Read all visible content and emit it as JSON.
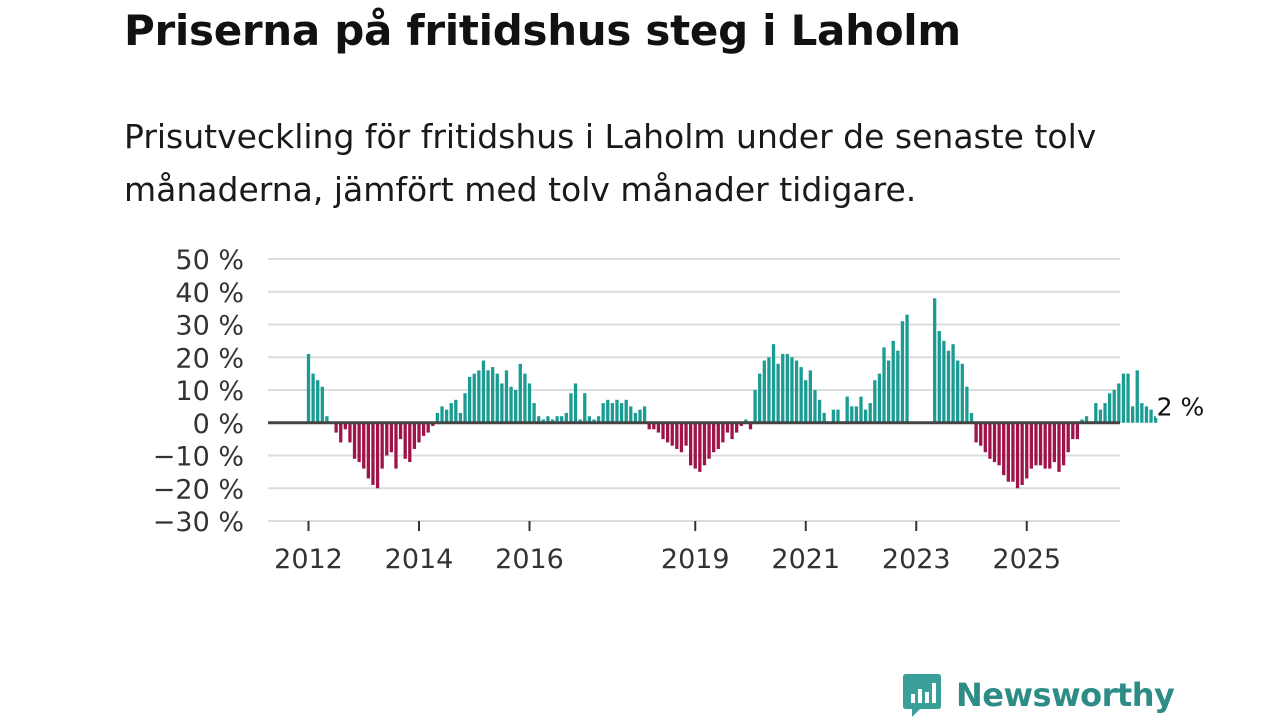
{
  "header": {
    "title": "Priserna på fritidshus steg i Laholm",
    "subtitle": "Prisutveckling för fritidshus i Laholm under de senaste tolv månaderna, jämfört med tolv månader tidigare."
  },
  "chart_data": {
    "type": "bar",
    "title": "Priserna på fritidshus steg i Laholm",
    "ylabel": "",
    "xlabel": "",
    "ylim": [
      -30,
      50
    ],
    "yticks": [
      "50 %",
      "40 %",
      "30 %",
      "20 %",
      "10 %",
      "0 %",
      "−10 %",
      "−20 %",
      "−30 %"
    ],
    "ytick_values": [
      50,
      40,
      30,
      20,
      10,
      0,
      -10,
      -20,
      -30
    ],
    "xticks": [
      {
        "label": "2012",
        "year": 2012
      },
      {
        "label": "2014",
        "year": 2014
      },
      {
        "label": "2016",
        "year": 2016
      },
      {
        "label": "2019",
        "year": 2019
      },
      {
        "label": "2021",
        "year": 2021
      },
      {
        "label": "2023",
        "year": 2023
      },
      {
        "label": "2025",
        "year": 2025
      }
    ],
    "start": {
      "year": 2012,
      "month": 1
    },
    "positive_color": "#1a9c93",
    "negative_color": "#a0134a",
    "annotation": {
      "text": "2 %",
      "value": 2
    },
    "values": [
      21,
      15,
      13,
      11,
      2,
      null,
      -3,
      -6,
      -2,
      -6,
      -11,
      -12,
      -14,
      -17,
      -19,
      -20,
      -14,
      -10,
      -9,
      -14,
      -5,
      -11,
      -12,
      -8,
      -6,
      -4,
      -3,
      -1,
      3,
      5,
      4,
      6,
      7,
      3,
      9,
      14,
      15,
      16,
      19,
      16,
      17,
      15,
      12,
      16,
      11,
      10,
      18,
      15,
      12,
      6,
      2,
      1,
      2,
      1,
      2,
      2,
      3,
      9,
      12,
      1,
      9,
      2,
      1,
      2,
      6,
      7,
      6,
      7,
      6,
      7,
      5,
      3,
      4,
      5,
      -2,
      -2,
      -3,
      -5,
      -6,
      -7,
      -8,
      -9,
      -7,
      -13,
      -14,
      -15,
      -13,
      -11,
      -9,
      -8,
      -6,
      -3,
      -5,
      -3,
      -1,
      1,
      -2,
      10,
      15,
      19,
      20,
      24,
      18,
      21,
      21,
      20,
      19,
      17,
      13,
      16,
      10,
      7,
      3,
      null,
      4,
      4,
      null,
      8,
      5,
      5,
      8,
      4,
      6,
      13,
      15,
      23,
      19,
      25,
      22,
      31,
      33,
      null,
      null,
      null,
      null,
      null,
      38,
      28,
      25,
      22,
      24,
      19,
      18,
      11,
      3,
      -6,
      -7,
      -9,
      -11,
      -12,
      -13,
      -16,
      -18,
      -18,
      -20,
      -19,
      -17,
      -14,
      -13,
      -13,
      -14,
      -14,
      -12,
      -15,
      -13,
      -9,
      -5,
      -5,
      1,
      2,
      null,
      6,
      4,
      6,
      9,
      10,
      12,
      15,
      15,
      5,
      16,
      6,
      5,
      4,
      2
    ]
  },
  "logo": {
    "text": "Newsworthy",
    "icon": "newsworthy-logo-icon"
  }
}
